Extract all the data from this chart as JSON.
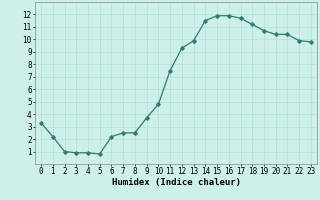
{
  "x": [
    0,
    1,
    2,
    3,
    4,
    5,
    6,
    7,
    8,
    9,
    10,
    11,
    12,
    13,
    14,
    15,
    16,
    17,
    18,
    19,
    20,
    21,
    22,
    23
  ],
  "y": [
    3.3,
    2.2,
    1.0,
    0.9,
    0.9,
    0.8,
    2.2,
    2.5,
    2.5,
    3.7,
    4.8,
    7.5,
    9.3,
    9.9,
    11.5,
    11.9,
    11.9,
    11.7,
    11.2,
    10.7,
    10.4,
    10.4,
    9.9,
    9.8
  ],
  "line_color": "#2e7d6e",
  "bg_color": "#cef0ea",
  "grid_color": "#b8ddd8",
  "xlabel": "Humidex (Indice chaleur)",
  "xlim": [
    -0.5,
    23.5
  ],
  "ylim": [
    0,
    13
  ],
  "yticks": [
    1,
    2,
    3,
    4,
    5,
    6,
    7,
    8,
    9,
    10,
    11,
    12
  ],
  "xticks": [
    0,
    1,
    2,
    3,
    4,
    5,
    6,
    7,
    8,
    9,
    10,
    11,
    12,
    13,
    14,
    15,
    16,
    17,
    18,
    19,
    20,
    21,
    22,
    23
  ],
  "tick_fontsize": 5.5,
  "xlabel_fontsize": 6.5,
  "marker": "D",
  "marker_size": 1.8,
  "linewidth": 0.9
}
